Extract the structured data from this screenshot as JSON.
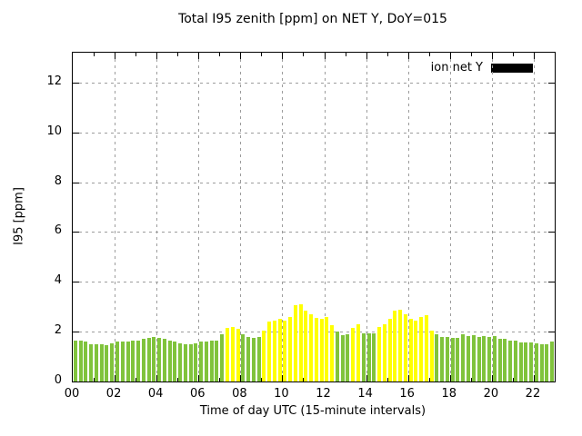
{
  "title": "Total I95 zenith [ppm] on NET Y, DoY=015",
  "legend": {
    "label": "ion net Y",
    "swatch_color": "#000000"
  },
  "axes": {
    "y_label": "I95 [ppm]",
    "x_label": "Time of day UTC (15-minute intervals)",
    "y_ticks": [
      "0",
      "2",
      "4",
      "6",
      "8",
      "10",
      "12"
    ],
    "x_ticks": [
      "00",
      "02",
      "04",
      "06",
      "08",
      "10",
      "12",
      "14",
      "16",
      "18",
      "20",
      "22"
    ]
  },
  "colors": {
    "green": "#80c33c",
    "yellow": "#ffff00",
    "grid": "#9c9c9c",
    "border": "#000000",
    "background": "#ffffff",
    "legend_swatch": "#000000"
  },
  "chart_data": {
    "type": "bar",
    "title": "Total I95 zenith [ppm] on NET Y, DoY=015",
    "xlabel": "Time of day UTC (15-minute intervals)",
    "ylabel": "I95 [ppm]",
    "xlim_hours": [
      0,
      23
    ],
    "ylim": [
      0,
      13.2
    ],
    "y_tick_values": [
      0,
      2,
      4,
      6,
      8,
      10,
      12
    ],
    "x_tick_hours": [
      0,
      2,
      4,
      6,
      8,
      10,
      12,
      14,
      16,
      18,
      20,
      22
    ],
    "grid": true,
    "legend_position": "top-right-inside",
    "series_name": "ion net Y",
    "start_time": "00:00",
    "interval_minutes": 15,
    "bar_unit": "ppm",
    "values": [
      1.65,
      1.65,
      1.6,
      1.5,
      1.5,
      1.5,
      1.45,
      1.55,
      1.6,
      1.6,
      1.6,
      1.65,
      1.65,
      1.7,
      1.75,
      1.8,
      1.75,
      1.7,
      1.65,
      1.6,
      1.55,
      1.5,
      1.5,
      1.55,
      1.6,
      1.6,
      1.65,
      1.65,
      1.9,
      2.15,
      2.2,
      2.1,
      1.9,
      1.8,
      1.75,
      1.8,
      2.05,
      2.4,
      2.45,
      2.5,
      2.45,
      2.6,
      3.05,
      3.1,
      2.85,
      2.7,
      2.55,
      2.5,
      2.6,
      2.25,
      2.0,
      1.85,
      1.9,
      2.15,
      2.3,
      1.95,
      1.95,
      1.95,
      2.2,
      2.3,
      2.5,
      2.85,
      2.9,
      2.7,
      2.5,
      2.45,
      2.6,
      2.65,
      2.05,
      1.9,
      1.8,
      1.78,
      1.75,
      1.75,
      1.88,
      1.82,
      1.85,
      1.78,
      1.83,
      1.8,
      1.82,
      1.73,
      1.7,
      1.65,
      1.63,
      1.58,
      1.57,
      1.57,
      1.55,
      1.5,
      1.5,
      1.6
    ],
    "colors": [
      "g",
      "g",
      "g",
      "g",
      "g",
      "g",
      "g",
      "g",
      "g",
      "g",
      "g",
      "g",
      "g",
      "g",
      "g",
      "g",
      "g",
      "g",
      "g",
      "g",
      "g",
      "g",
      "g",
      "g",
      "g",
      "g",
      "g",
      "g",
      "g",
      "y",
      "y",
      "y",
      "g",
      "g",
      "g",
      "g",
      "y",
      "y",
      "y",
      "y",
      "y",
      "y",
      "y",
      "y",
      "y",
      "y",
      "y",
      "y",
      "y",
      "y",
      "g",
      "g",
      "g",
      "y",
      "y",
      "g",
      "g",
      "g",
      "y",
      "y",
      "y",
      "y",
      "y",
      "y",
      "y",
      "y",
      "y",
      "y",
      "y",
      "g",
      "g",
      "g",
      "g",
      "g",
      "g",
      "g",
      "g",
      "g",
      "g",
      "g",
      "g",
      "g",
      "g",
      "g",
      "g",
      "g",
      "g",
      "g",
      "g",
      "g",
      "g",
      "g"
    ]
  }
}
